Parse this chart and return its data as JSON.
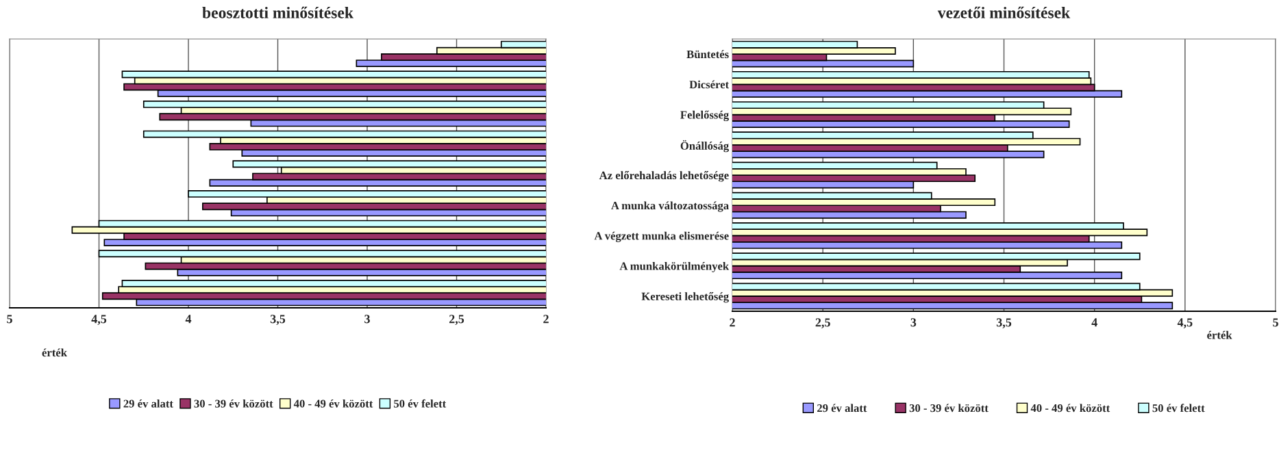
{
  "chart_data": [
    {
      "type": "bar",
      "orientation": "horizontal",
      "title": "beosztotti minősítések",
      "xlabel": "érték",
      "categories": [
        null,
        null,
        null,
        null,
        null,
        null,
        null,
        null,
        null
      ],
      "series": [
        {
          "name": "29 év alatt",
          "color": "#9999ff",
          "values": [
            3.06,
            4.17,
            3.65,
            3.7,
            3.88,
            3.76,
            4.47,
            4.06,
            4.29
          ]
        },
        {
          "name": "30 - 39 év között",
          "color": "#993366",
          "values": [
            2.92,
            4.36,
            4.16,
            3.88,
            3.64,
            3.92,
            4.36,
            4.24,
            4.48
          ]
        },
        {
          "name": "40 - 49 év között",
          "color": "#ffffcc",
          "values": [
            2.61,
            4.3,
            4.04,
            3.82,
            3.48,
            3.56,
            4.65,
            4.04,
            4.39
          ]
        },
        {
          "name": "50 év felett",
          "color": "#ccffff",
          "values": [
            2.25,
            4.37,
            4.25,
            4.25,
            3.75,
            4.0,
            4.5,
            4.5,
            4.37
          ]
        }
      ],
      "xlim": [
        5,
        2
      ],
      "xticks": [
        {
          "value": 5,
          "label": "5"
        },
        {
          "value": 4.5,
          "label": "4,5"
        },
        {
          "value": 4,
          "label": "4"
        },
        {
          "value": 3.5,
          "label": "3,5"
        },
        {
          "value": 3,
          "label": "3"
        },
        {
          "value": 2.5,
          "label": "2,5"
        },
        {
          "value": 2,
          "label": "2"
        }
      ],
      "grid": "x",
      "legend": "bottom",
      "tick_labels": "x"
    },
    {
      "type": "bar",
      "orientation": "horizontal",
      "title": "vezetői minősítések",
      "xlabel": "érték",
      "categories": [
        "Büntetés",
        "Dicséret",
        "Felelősség",
        "Önállóság",
        "Az előrehaladás lehetősége",
        "A munka változatossága",
        "A végzett munka elismerése",
        "A munkakörülmények",
        "Kereseti lehetőség"
      ],
      "series": [
        {
          "name": "29 év alatt",
          "color": "#9999ff",
          "values": [
            3.0,
            4.15,
            3.86,
            3.72,
            3.0,
            3.29,
            4.15,
            4.15,
            4.43
          ]
        },
        {
          "name": "30 - 39 év között",
          "color": "#993366",
          "values": [
            2.52,
            4.0,
            3.45,
            3.52,
            3.34,
            3.15,
            3.97,
            3.59,
            4.26
          ]
        },
        {
          "name": "40 - 49 év között",
          "color": "#ffffcc",
          "values": [
            2.9,
            3.98,
            3.87,
            3.92,
            3.29,
            3.45,
            4.29,
            3.85,
            4.43
          ]
        },
        {
          "name": "50 év felett",
          "color": "#ccffff",
          "values": [
            2.69,
            3.97,
            3.72,
            3.66,
            3.13,
            3.1,
            4.16,
            4.25,
            4.25
          ]
        }
      ],
      "xlim": [
        2,
        5
      ],
      "xticks": [
        {
          "value": 2,
          "label": "2"
        },
        {
          "value": 2.5,
          "label": "2,5"
        },
        {
          "value": 3,
          "label": "3"
        },
        {
          "value": 3.5,
          "label": "3,5"
        },
        {
          "value": 4,
          "label": "4"
        },
        {
          "value": 4.5,
          "label": "4,5"
        },
        {
          "value": 5,
          "label": "5"
        }
      ],
      "grid": "x",
      "legend": "bottom"
    }
  ]
}
